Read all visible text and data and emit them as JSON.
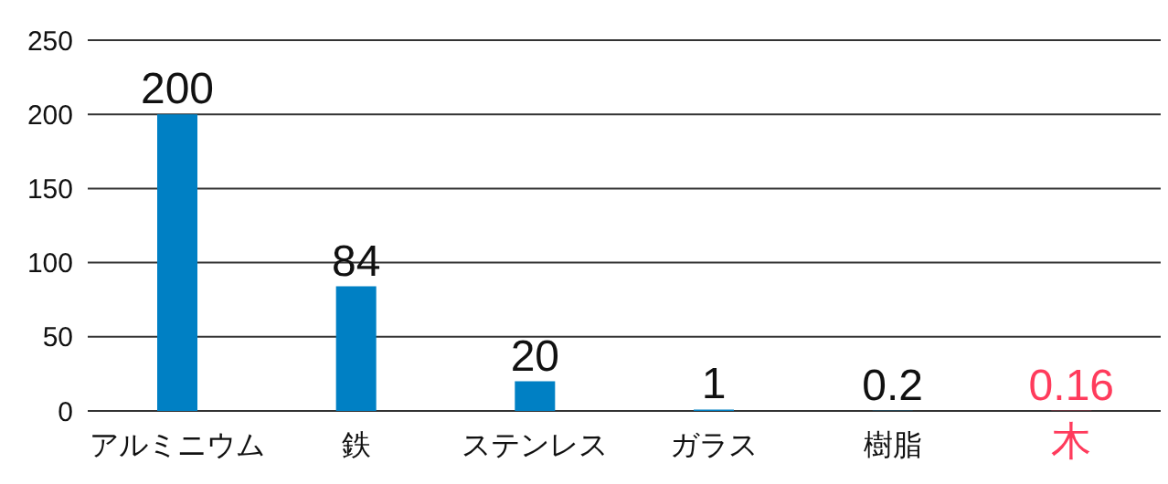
{
  "chart_data": {
    "type": "bar",
    "categories": [
      "アルミニウム",
      "鉄",
      "ステンレス",
      "ガラス",
      "樹脂",
      "木"
    ],
    "values": [
      200,
      84,
      20,
      1,
      0.2,
      0.16
    ],
    "colors": [
      "#0080c4",
      "#0080c4",
      "#0080c4",
      "#0080c4",
      "#0080c4",
      "#ff3b5c"
    ],
    "ylim": [
      0,
      250
    ],
    "yticks": [
      0,
      50,
      100,
      150,
      200,
      250
    ],
    "grid": "y",
    "data_labels": true,
    "legend": false
  }
}
